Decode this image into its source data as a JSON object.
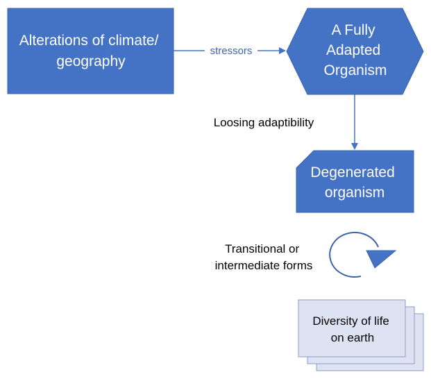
{
  "nodes": {
    "alterations": {
      "line1": "Alterations of climate/",
      "line2": "geography"
    },
    "adapted": {
      "line1": "A Fully",
      "line2": "Adapted",
      "line3": "Organism"
    },
    "degenerated": {
      "line1": "Degenerated",
      "line2": "organism"
    },
    "diversity": {
      "line1": "Diversity of life",
      "line2": "on earth"
    }
  },
  "edges": {
    "stressors": "stressors",
    "loosing": "Loosing adaptibility"
  },
  "cycle": {
    "line1": "Transitional or",
    "line2": "intermediate forms"
  },
  "colors": {
    "node_fill": "#4472c4",
    "node_stroke": "#3a63ad",
    "arrow": "#4472c4",
    "doc_fill": "#dde3f3",
    "doc_stroke": "#8e9bbf"
  }
}
